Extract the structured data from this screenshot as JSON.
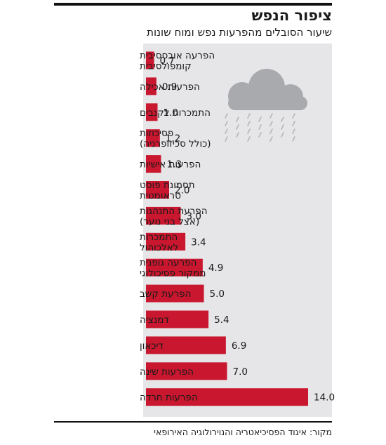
{
  "header": {
    "title": "ציפור הנפש",
    "subtitle": "שיעור הסובלים מהפרעות נפש ומוח שונות"
  },
  "footer": {
    "source": "מקור: איגוד הפסיכיאטריה והנוירולוגיה האירופאי"
  },
  "colors": {
    "bar": "#c8172e",
    "panel": "#e6e6e8",
    "cloud": "#a9aaae",
    "rain": "#b5b6ba"
  },
  "decoration": {
    "icon": "rain-cloud-icon"
  },
  "chart_data": {
    "type": "bar",
    "orientation": "horizontal",
    "title": "",
    "xlabel": "",
    "ylabel": "",
    "xlim": [
      0,
      14.5
    ],
    "grid": false,
    "categories": [
      [
        "הפרעה אובססיבית",
        "קומפולסיבית"
      ],
      [
        "הפרעות אכילה"
      ],
      [
        "התמכרות לקנבים"
      ],
      [
        "פסיכוזות",
        "(כולל סכיזופרניה)"
      ],
      [
        "הפרעות אישיות"
      ],
      [
        "תסמונת פוסט",
        "טראומטית"
      ],
      [
        "הפרעת התנהגות",
        "(אצל בני נוער)"
      ],
      [
        "התמכרות",
        "לאלכוהול"
      ],
      [
        "הפרעה גופנית",
        "ממקור פסיכולוגי"
      ],
      [
        "הפרעת קשב"
      ],
      [
        "דמנציה"
      ],
      [
        "דיכאון"
      ],
      [
        "הפרעות שינה"
      ],
      [
        "הפרעות חרדה"
      ]
    ],
    "values": [
      0.7,
      0.9,
      1.0,
      1.2,
      1.3,
      2.0,
      3.0,
      3.4,
      4.9,
      5.0,
      5.4,
      6.9,
      7.0,
      14.0
    ],
    "value_labels": [
      "0.7",
      "0.9",
      "1.0",
      "1.2",
      "1.3",
      "2.0",
      "3.0",
      "3.4",
      "4.9",
      "5.0",
      "5.4",
      "6.9",
      "7.0",
      "14.0"
    ]
  }
}
